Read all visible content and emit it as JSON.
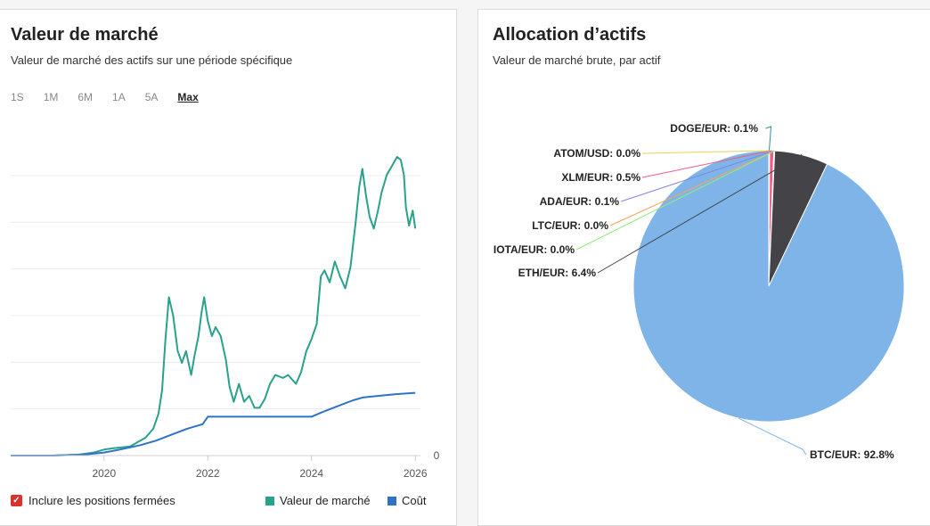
{
  "left_card": {
    "title": "Valeur de marché",
    "subtitle": "Valeur de marché des actifs sur une période spécifique",
    "range_tabs": [
      "1S",
      "1M",
      "6M",
      "1A",
      "5A",
      "Max"
    ],
    "active_tab": "Max",
    "include_closed_label": "Inclure les positions fermées",
    "include_closed_checked": true
  },
  "right_card": {
    "title": "Allocation d’actifs",
    "subtitle": "Valeur de marché brute, par actif"
  },
  "colors": {
    "market_value": "#2aa18b",
    "cost": "#2f73c8",
    "btc": "#7eb4e8",
    "eth": "#434348",
    "accent_checkbox": "#d9342b"
  },
  "chart_data": [
    {
      "type": "line",
      "title": "Valeur de marché",
      "x_ticks": [
        "2020",
        "2022",
        "2024",
        "2026"
      ],
      "y_ticks": [
        "0"
      ],
      "xlim": [
        2018.2,
        2026.1
      ],
      "ylim": [
        0,
        100
      ],
      "grid": true,
      "legend_placement": "bottom-right",
      "series": [
        {
          "name": "Valeur de marché",
          "color": "#2aa18b",
          "points": [
            [
              2018.2,
              0
            ],
            [
              2019.0,
              0
            ],
            [
              2019.5,
              0.3
            ],
            [
              2019.8,
              1
            ],
            [
              2020.0,
              2
            ],
            [
              2020.2,
              2.5
            ],
            [
              2020.5,
              3
            ],
            [
              2020.8,
              6
            ],
            [
              2020.95,
              9
            ],
            [
              2021.05,
              14
            ],
            [
              2021.12,
              22
            ],
            [
              2021.18,
              38
            ],
            [
              2021.25,
              53
            ],
            [
              2021.33,
              47
            ],
            [
              2021.42,
              35
            ],
            [
              2021.5,
              31
            ],
            [
              2021.58,
              35
            ],
            [
              2021.68,
              27
            ],
            [
              2021.75,
              34
            ],
            [
              2021.82,
              40
            ],
            [
              2021.88,
              48
            ],
            [
              2021.93,
              53
            ],
            [
              2022.0,
              45
            ],
            [
              2022.08,
              40
            ],
            [
              2022.15,
              43
            ],
            [
              2022.25,
              40
            ],
            [
              2022.35,
              32
            ],
            [
              2022.42,
              23
            ],
            [
              2022.5,
              18
            ],
            [
              2022.6,
              24
            ],
            [
              2022.7,
              18
            ],
            [
              2022.8,
              20
            ],
            [
              2022.9,
              16
            ],
            [
              2023.0,
              16
            ],
            [
              2023.1,
              19
            ],
            [
              2023.2,
              24
            ],
            [
              2023.3,
              27
            ],
            [
              2023.45,
              26
            ],
            [
              2023.55,
              27
            ],
            [
              2023.7,
              24
            ],
            [
              2023.8,
              28
            ],
            [
              2023.9,
              35
            ],
            [
              2024.0,
              39
            ],
            [
              2024.1,
              44
            ],
            [
              2024.18,
              60
            ],
            [
              2024.25,
              62
            ],
            [
              2024.35,
              58
            ],
            [
              2024.45,
              65
            ],
            [
              2024.55,
              60
            ],
            [
              2024.65,
              56
            ],
            [
              2024.75,
              63
            ],
            [
              2024.85,
              78
            ],
            [
              2024.92,
              90
            ],
            [
              2024.98,
              96
            ],
            [
              2025.05,
              87
            ],
            [
              2025.12,
              80
            ],
            [
              2025.2,
              76
            ],
            [
              2025.28,
              82
            ],
            [
              2025.35,
              88
            ],
            [
              2025.45,
              94
            ],
            [
              2025.55,
              97
            ],
            [
              2025.65,
              100
            ],
            [
              2025.72,
              99
            ],
            [
              2025.78,
              94
            ],
            [
              2025.82,
              83
            ],
            [
              2025.88,
              77
            ],
            [
              2025.95,
              82
            ],
            [
              2026.0,
              76
            ]
          ]
        },
        {
          "name": "Coût",
          "color": "#2f73c8",
          "points": [
            [
              2018.2,
              0
            ],
            [
              2019.0,
              0
            ],
            [
              2019.6,
              0.3
            ],
            [
              2020.0,
              1
            ],
            [
              2020.3,
              2
            ],
            [
              2020.7,
              3.5
            ],
            [
              2021.0,
              5
            ],
            [
              2021.3,
              7
            ],
            [
              2021.6,
              9
            ],
            [
              2021.9,
              10.5
            ],
            [
              2022.0,
              13
            ],
            [
              2022.5,
              13
            ],
            [
              2023.0,
              13
            ],
            [
              2023.5,
              13
            ],
            [
              2024.0,
              13
            ],
            [
              2024.2,
              14.5
            ],
            [
              2024.5,
              16.5
            ],
            [
              2024.8,
              18.5
            ],
            [
              2025.0,
              19.5
            ],
            [
              2025.3,
              20
            ],
            [
              2025.6,
              20.5
            ],
            [
              2026.0,
              21
            ]
          ]
        }
      ]
    },
    {
      "type": "pie",
      "title": "Allocation d’actifs",
      "unit": "%",
      "slices": [
        {
          "name": "BTC/EUR",
          "value": 92.8,
          "label": "BTC/EUR: 92.8%",
          "color": "#7eb4e8"
        },
        {
          "name": "ETH/EUR",
          "value": 6.4,
          "label": "ETH/EUR: 6.4%",
          "color": "#434348"
        },
        {
          "name": "IOTA/EUR",
          "value": 0.0,
          "label": "IOTA/EUR: 0.0%",
          "color": "#90ed7d"
        },
        {
          "name": "LTC/EUR",
          "value": 0.0,
          "label": "LTC/EUR: 0.0%",
          "color": "#f7a35c"
        },
        {
          "name": "ADA/EUR",
          "value": 0.1,
          "label": "ADA/EUR: 0.1%",
          "color": "#8085e9"
        },
        {
          "name": "XLM/EUR",
          "value": 0.5,
          "label": "XLM/EUR: 0.5%",
          "color": "#f15c80"
        },
        {
          "name": "ATOM/USD",
          "value": 0.0,
          "label": "ATOM/USD: 0.0%",
          "color": "#e4d354"
        },
        {
          "name": "DOGE/EUR",
          "value": 0.1,
          "label": "DOGE/EUR: 0.1%",
          "color": "#2b908f"
        }
      ]
    }
  ]
}
